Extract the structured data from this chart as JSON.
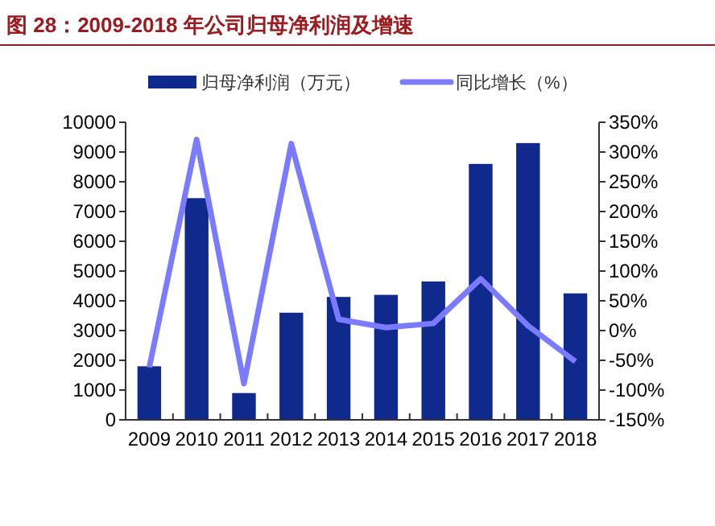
{
  "chart_data": {
    "type": "bar",
    "title": "图 28：2009-2018 年公司归母净利润及增速",
    "categories": [
      "2009",
      "2010",
      "2011",
      "2012",
      "2013",
      "2014",
      "2015",
      "2016",
      "2017",
      "2018"
    ],
    "series": [
      {
        "name": "归母净利润（万元）",
        "color": "#0f2a8c",
        "values": [
          1800,
          7450,
          900,
          3600,
          4130,
          4200,
          4650,
          8600,
          9300,
          4250
        ]
      },
      {
        "name": "同比增长（%）",
        "type": "line",
        "axis": "y2",
        "color": "#7b7bff",
        "values": [
          -62,
          321,
          -89,
          314,
          19,
          5,
          12,
          87,
          8,
          -52
        ]
      }
    ],
    "ylim": [
      0,
      10000
    ],
    "yticks": [
      0,
      1000,
      2000,
      3000,
      4000,
      5000,
      6000,
      7000,
      8000,
      9000,
      10000
    ],
    "y2lim": [
      -150,
      350
    ],
    "y2ticks": [
      {
        "value": -150,
        "label": "-150%"
      },
      {
        "value": -100,
        "label": "-100%"
      },
      {
        "value": -50,
        "label": "-50%"
      },
      {
        "value": 0,
        "label": "0%"
      },
      {
        "value": 50,
        "label": "50%"
      },
      {
        "value": 100,
        "label": "100%"
      },
      {
        "value": 150,
        "label": "150%"
      },
      {
        "value": 200,
        "label": "200%"
      },
      {
        "value": 250,
        "label": "250%"
      },
      {
        "value": 300,
        "label": "300%"
      },
      {
        "value": 350,
        "label": "350%"
      }
    ],
    "grid": false,
    "legend": "top",
    "marker": "none"
  }
}
